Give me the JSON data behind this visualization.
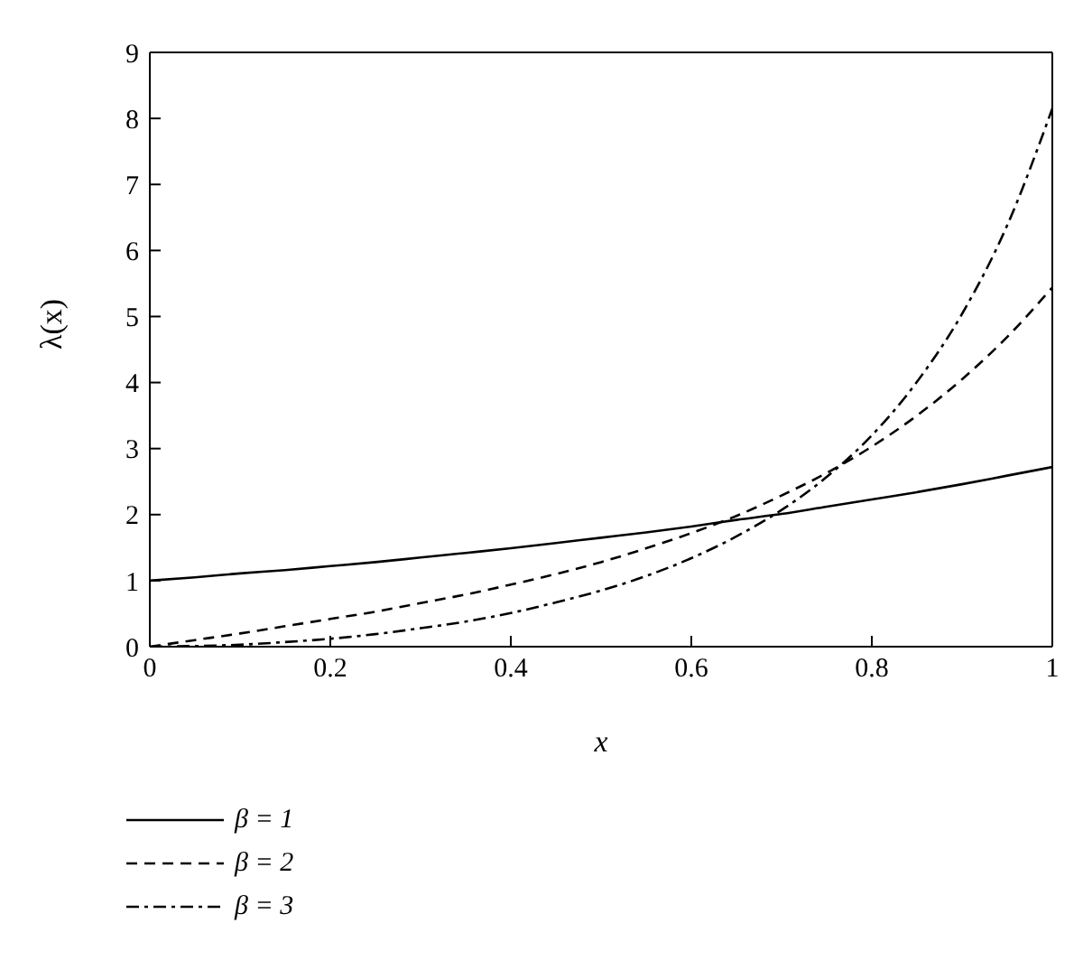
{
  "chart_data": {
    "type": "line",
    "xlabel": "x",
    "ylabel": "λ(x)",
    "x": [
      0,
      0.05,
      0.1,
      0.15,
      0.2,
      0.25,
      0.3,
      0.35,
      0.4,
      0.45,
      0.5,
      0.55,
      0.6,
      0.65,
      0.7,
      0.75,
      0.8,
      0.85,
      0.9,
      0.95,
      1
    ],
    "series": [
      {
        "name": "β = 1",
        "color": "#000000",
        "line_style": "solid",
        "values": [
          1,
          1.05,
          1.11,
          1.16,
          1.22,
          1.28,
          1.35,
          1.42,
          1.49,
          1.57,
          1.65,
          1.73,
          1.82,
          1.92,
          2.01,
          2.12,
          2.23,
          2.34,
          2.46,
          2.59,
          2.72
        ]
      },
      {
        "name": "β = 2",
        "color": "#000000",
        "line_style": "dashed",
        "values": [
          0,
          0.1,
          0.2,
          0.31,
          0.42,
          0.53,
          0.66,
          0.79,
          0.94,
          1.1,
          1.28,
          1.49,
          1.72,
          1.98,
          2.29,
          2.63,
          3.03,
          3.5,
          4.05,
          4.69,
          5.44
        ]
      },
      {
        "name": "β = 3",
        "color": "#000000",
        "line_style": "dashdot",
        "values": [
          0,
          0.01,
          0.03,
          0.07,
          0.12,
          0.19,
          0.28,
          0.38,
          0.51,
          0.67,
          0.85,
          1.07,
          1.34,
          1.67,
          2.07,
          2.57,
          3.2,
          4.01,
          5.04,
          6.38,
          8.15
        ]
      }
    ],
    "xlim": [
      0,
      1
    ],
    "xticks": [
      0,
      0.2,
      0.4,
      0.6,
      0.8,
      1
    ],
    "ylim": [
      0,
      9
    ],
    "yticks": [
      0,
      1,
      2,
      3,
      4,
      5,
      6,
      7,
      8,
      9
    ],
    "grid": false,
    "legend": "bottom left",
    "marker": "none"
  }
}
